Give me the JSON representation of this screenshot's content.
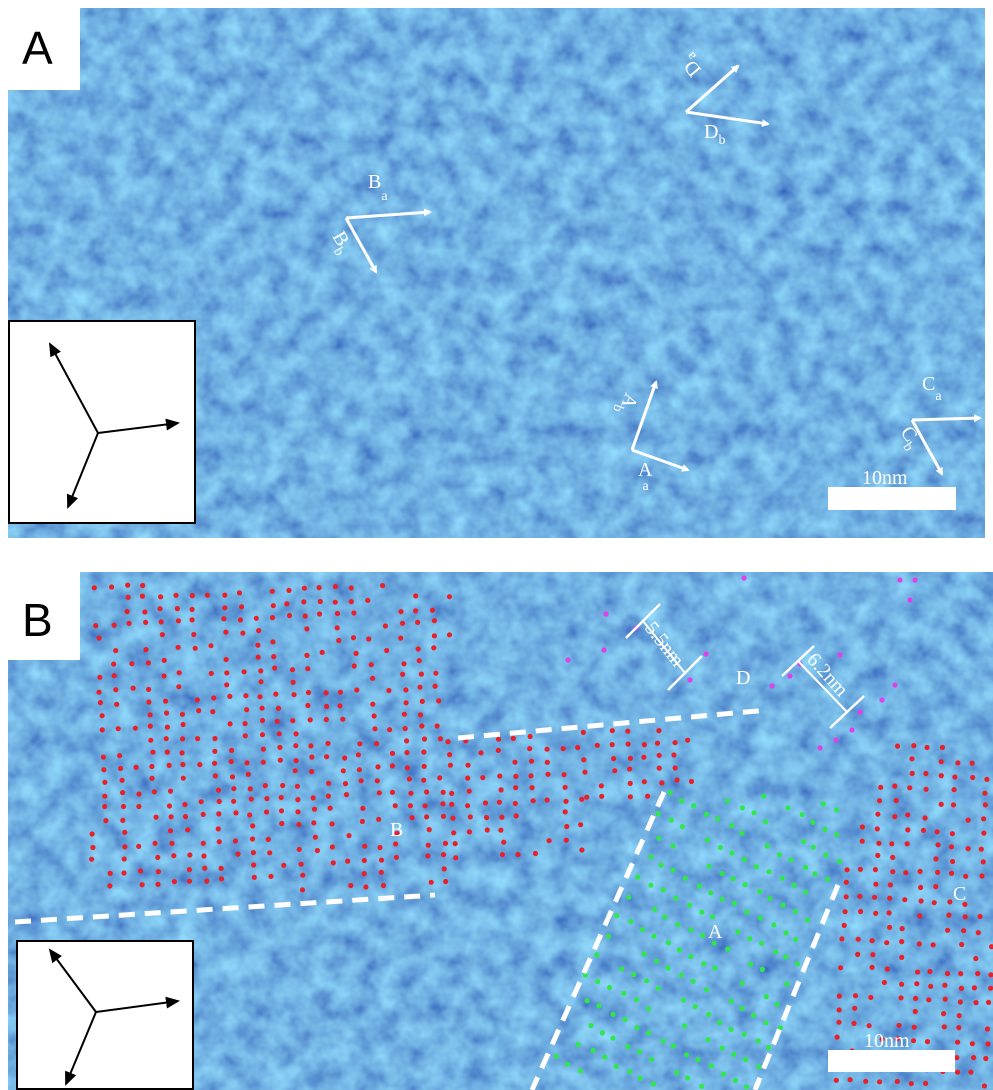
{
  "panels": [
    {
      "label": "A",
      "vectors": [
        {
          "main": "D",
          "sub": "a"
        },
        {
          "main": "D",
          "sub": "b"
        },
        {
          "main": "B",
          "sub": "a"
        },
        {
          "main": "B",
          "sub": "b"
        },
        {
          "main": "A",
          "sub": "b"
        },
        {
          "main": "A",
          "sub": "a"
        },
        {
          "main": "C",
          "sub": "a"
        },
        {
          "main": "C",
          "sub": "b"
        }
      ],
      "scale_bar": "10nm"
    },
    {
      "label": "B",
      "measurements": [
        "5.5nm",
        "6.2nm"
      ],
      "regions": [
        "D",
        "B",
        "A",
        "C"
      ],
      "scale_bar": "10nm"
    }
  ]
}
